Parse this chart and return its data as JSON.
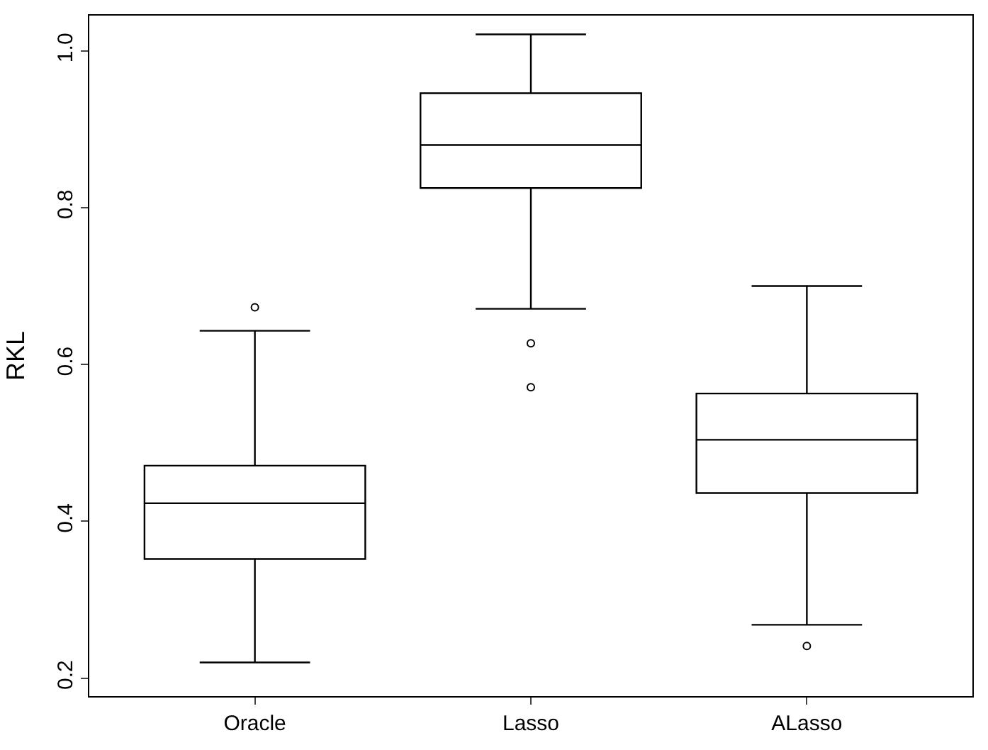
{
  "chart_data": {
    "type": "box",
    "ylabel": "RKL",
    "categories": [
      "Oracle",
      "Lasso",
      "ALasso"
    ],
    "boxes": [
      {
        "low": 0.22,
        "q1": 0.352,
        "median": 0.423,
        "q3": 0.471,
        "high": 0.643,
        "outliers": [
          0.673
        ]
      },
      {
        "low": 0.671,
        "q1": 0.825,
        "median": 0.88,
        "q3": 0.946,
        "high": 1.021,
        "outliers": [
          0.627,
          0.571
        ]
      },
      {
        "low": 0.268,
        "q1": 0.436,
        "median": 0.504,
        "q3": 0.563,
        "high": 0.7,
        "outliers": [
          0.241
        ]
      }
    ],
    "color": "#000000",
    "ylim": [
      0.177,
      1.045
    ],
    "yticks": [
      0.2,
      0.4,
      0.6,
      0.8,
      {
        "value": 1,
        "label": "1.0"
      }
    ]
  }
}
